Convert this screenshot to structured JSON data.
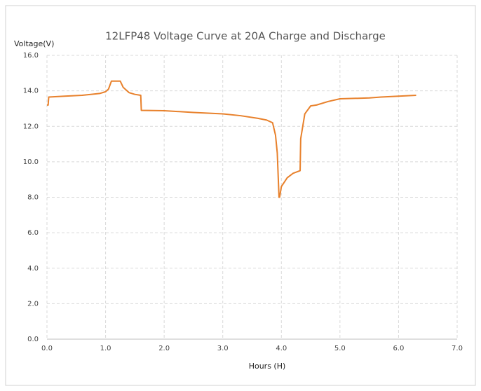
{
  "chart_data": {
    "type": "line",
    "title": "12LFP48 Voltage Curve at 20A Charge and Discharge",
    "y_label": "Voltage(V)",
    "x_label": "Hours (H)",
    "xlim": [
      0,
      7
    ],
    "ylim": [
      0,
      16
    ],
    "xticks": [
      {
        "value": 0,
        "label": "0.0"
      },
      {
        "value": 1,
        "label": "1.0"
      },
      {
        "value": 2,
        "label": "2.0"
      },
      {
        "value": 3,
        "label": "3.0"
      },
      {
        "value": 4,
        "label": "4.0"
      },
      {
        "value": 5,
        "label": "5.0"
      },
      {
        "value": 6,
        "label": "6.0"
      },
      {
        "value": 7,
        "label": "7.0"
      }
    ],
    "yticks": [
      {
        "value": 0,
        "label": "0.0"
      },
      {
        "value": 2,
        "label": "2.0"
      },
      {
        "value": 4,
        "label": "4.0"
      },
      {
        "value": 6,
        "label": "6.0"
      },
      {
        "value": 8,
        "label": "8.0"
      },
      {
        "value": 10,
        "label": "10.0"
      },
      {
        "value": 12,
        "label": "12.0"
      },
      {
        "value": 14,
        "label": "14.0"
      },
      {
        "value": 16,
        "label": "16.0"
      }
    ],
    "grid": true,
    "x": [
      0,
      0.02,
      0.03,
      0.3,
      0.6,
      0.9,
      1.0,
      1.05,
      1.1,
      1.25,
      1.3,
      1.4,
      1.5,
      1.6,
      1.61,
      2.0,
      2.5,
      3.0,
      3.3,
      3.6,
      3.75,
      3.85,
      3.9,
      3.93,
      3.96,
      3.97,
      4.0,
      4.1,
      4.2,
      4.32,
      4.33,
      4.4,
      4.5,
      4.6,
      4.8,
      5.0,
      5.5,
      5.7,
      6.0,
      6.3
    ],
    "series": [
      {
        "color": "#e8812c",
        "values": [
          13.2,
          13.2,
          13.65,
          13.7,
          13.75,
          13.85,
          13.95,
          14.1,
          14.55,
          14.55,
          14.2,
          13.9,
          13.8,
          13.75,
          12.9,
          12.88,
          12.78,
          12.7,
          12.6,
          12.45,
          12.35,
          12.2,
          11.5,
          10.5,
          8.0,
          8.0,
          8.6,
          9.1,
          9.35,
          9.5,
          11.3,
          12.7,
          13.15,
          13.2,
          13.4,
          13.55,
          13.6,
          13.65,
          13.7,
          13.75
        ]
      }
    ]
  }
}
